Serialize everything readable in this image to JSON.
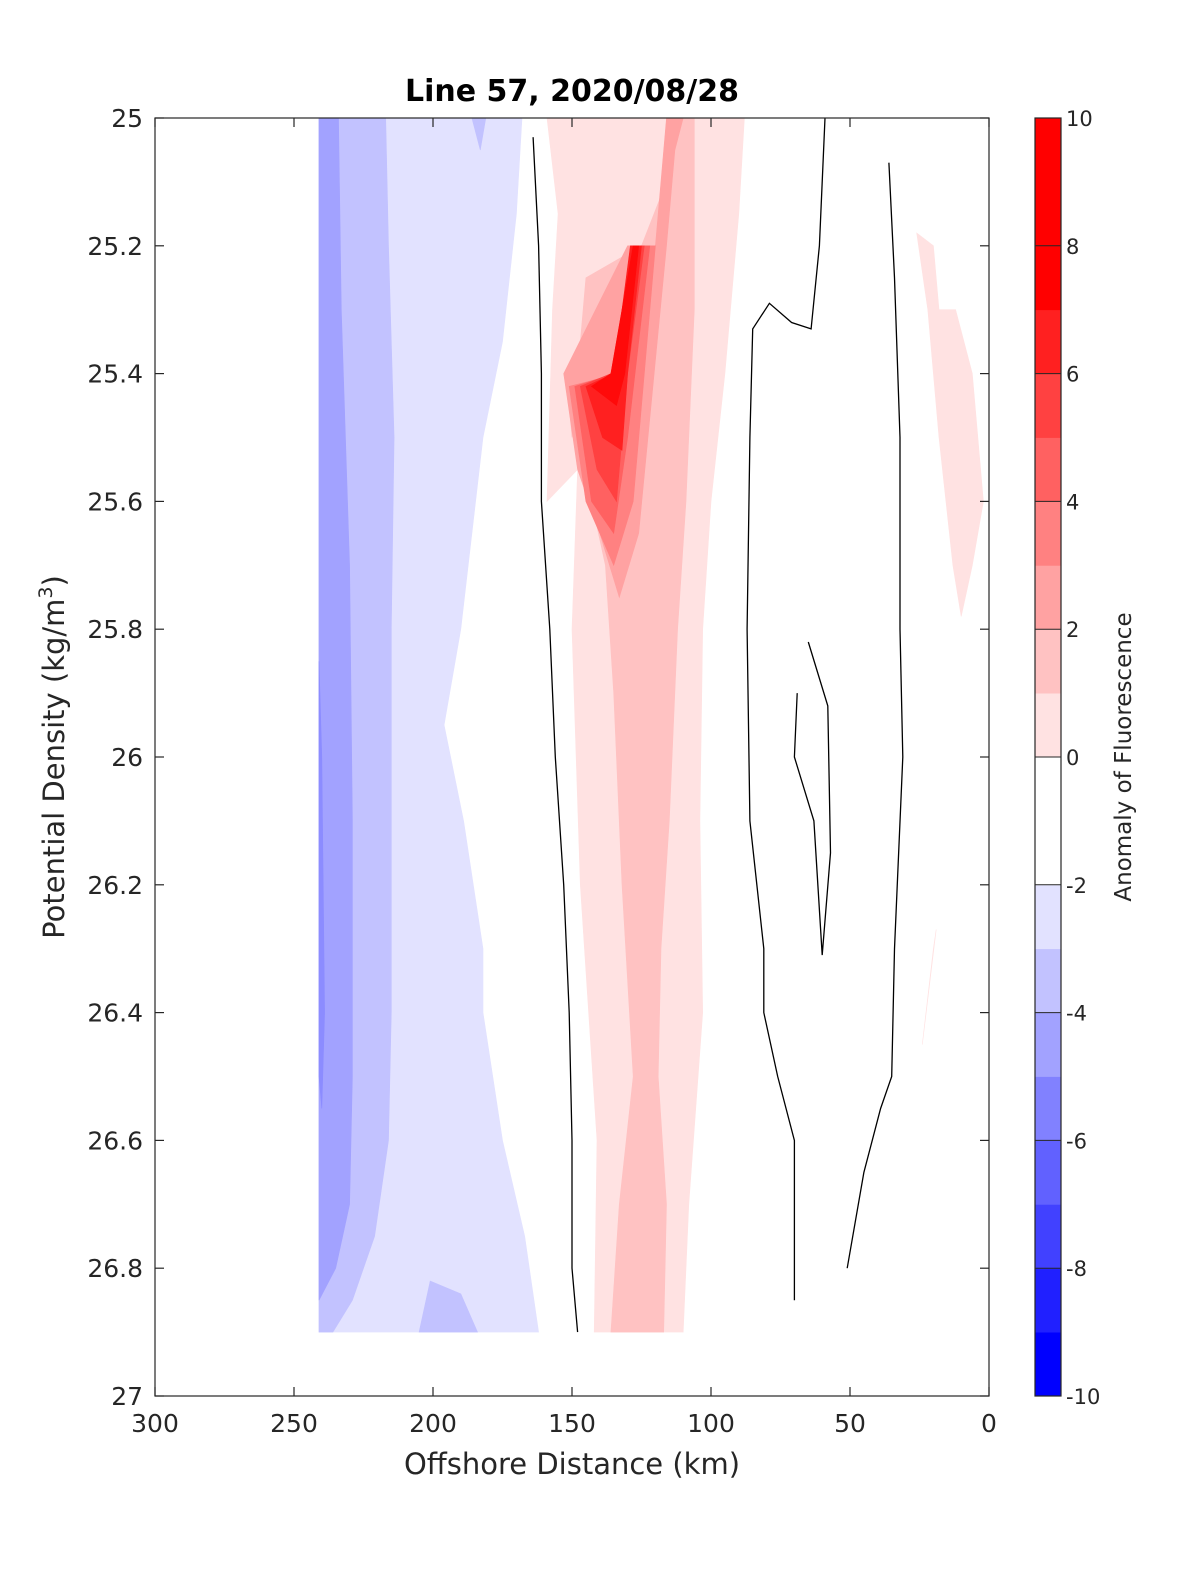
{
  "chart_data": {
    "type": "contour",
    "title": "Line 57, 2020/08/28",
    "xlabel": "Offshore Distance (km)",
    "ylabel_main": "Potential Density (kg/m",
    "ylabel_sup": "3",
    "ylabel_close": ")",
    "xlim": [
      300,
      0
    ],
    "ylim": [
      25,
      27
    ],
    "y_reversed": true,
    "xticks": [
      300,
      250,
      200,
      150,
      100,
      50,
      0
    ],
    "xtick_labels": [
      "300",
      "250",
      "200",
      "150",
      "100",
      "50",
      "0"
    ],
    "yticks": [
      25,
      25.2,
      25.4,
      25.6,
      25.8,
      26,
      26.2,
      26.4,
      26.6,
      26.8,
      27
    ],
    "ytick_labels": [
      "25",
      "25.2",
      "25.4",
      "25.6",
      "25.8",
      "26",
      "26.2",
      "26.4",
      "26.6",
      "26.8",
      "27"
    ],
    "colorbar": {
      "label": "Anomaly of Fluorescence",
      "range": [
        -10,
        10
      ],
      "ticks": [
        10,
        8,
        6,
        4,
        2,
        0,
        -2,
        -4,
        -6,
        -8,
        -10
      ],
      "tick_labels": [
        "10",
        "8",
        "6",
        "4",
        "2",
        "0",
        "-2",
        "-4",
        "-6",
        "-8",
        "-10"
      ],
      "level_colors": [
        "#0000ff",
        "#2020ff",
        "#4141ff",
        "#6161ff",
        "#8181ff",
        "#a2a2ff",
        "#c2c2ff",
        "#e2e2ff",
        "#ffffff",
        "#ffffff",
        "#ffe2e2",
        "#ffc2c2",
        "#ffa2a2",
        "#ff8181",
        "#ff6161",
        "#ff4141",
        "#ff2020",
        "#ff0000",
        "#ff0000",
        "#ff0000"
      ]
    },
    "filled_regions": [
      {
        "level": "-1 to 0",
        "color": "#e2e2ff",
        "points": [
          [
            241,
            25
          ],
          [
            168,
            25
          ],
          [
            170,
            25.15
          ],
          [
            175,
            25.35
          ],
          [
            182,
            25.5
          ],
          [
            190,
            25.8
          ],
          [
            196,
            25.95
          ],
          [
            189,
            26.1
          ],
          [
            182,
            26.3
          ],
          [
            182,
            26.4
          ],
          [
            175,
            26.6
          ],
          [
            167,
            26.75
          ],
          [
            162,
            26.9
          ],
          [
            241,
            26.9
          ]
        ]
      },
      {
        "level": "-2 to -1",
        "color": "#c2c2ff",
        "points": [
          [
            241,
            25
          ],
          [
            217,
            25
          ],
          [
            216,
            25.2
          ],
          [
            214,
            25.5
          ],
          [
            215,
            25.8
          ],
          [
            215,
            26.1
          ],
          [
            215,
            26.4
          ],
          [
            216,
            26.6
          ],
          [
            221,
            26.75
          ],
          [
            225,
            26.8
          ],
          [
            229,
            26.85
          ],
          [
            236,
            26.9
          ],
          [
            241,
            26.9
          ]
        ]
      },
      {
        "level": "-2 to -1",
        "color": "#c2c2ff",
        "points": [
          [
            205,
            26.9
          ],
          [
            201,
            26.82
          ],
          [
            190,
            26.84
          ],
          [
            184,
            26.9
          ]
        ]
      },
      {
        "level": "-2 to -1",
        "color": "#c2c2ff",
        "points": [
          [
            186,
            25
          ],
          [
            183,
            25.05
          ],
          [
            181,
            25
          ]
        ]
      },
      {
        "level": "-3 to -2",
        "color": "#a2a2ff",
        "points": [
          [
            241,
            25
          ],
          [
            234,
            25
          ],
          [
            233,
            25.3
          ],
          [
            230,
            25.7
          ],
          [
            229,
            26.1
          ],
          [
            229,
            26.5
          ],
          [
            230,
            26.7
          ],
          [
            235,
            26.8
          ],
          [
            241,
            26.85
          ]
        ]
      },
      {
        "level": "-4 to -3",
        "color": "#8c8cff",
        "points": [
          [
            241,
            25.85
          ],
          [
            240,
            26.0
          ],
          [
            239,
            26.4
          ],
          [
            240,
            26.55
          ],
          [
            241,
            26.5
          ]
        ]
      },
      {
        "level": "1 to 2",
        "color": "#ffe2e2",
        "points": [
          [
            148,
            25.55
          ],
          [
            159,
            25.6
          ],
          [
            157,
            25.3
          ],
          [
            155,
            25.15
          ],
          [
            159,
            25
          ],
          [
            88,
            25
          ],
          [
            90,
            25.15
          ],
          [
            95,
            25.4
          ],
          [
            100,
            25.6
          ],
          [
            103,
            25.8
          ],
          [
            104,
            26.1
          ],
          [
            103,
            26.4
          ],
          [
            108,
            26.7
          ],
          [
            110,
            26.9
          ],
          [
            142,
            26.9
          ],
          [
            141,
            26.6
          ],
          [
            147,
            26.2
          ],
          [
            150,
            25.8
          ]
        ]
      },
      {
        "level": "2 to 3",
        "color": "#ffc2c2",
        "points": [
          [
            150,
            25.5
          ],
          [
            145,
            25.25
          ],
          [
            125,
            25.2
          ],
          [
            116,
            25.1
          ],
          [
            114,
            25
          ],
          [
            106,
            25
          ],
          [
            106,
            25.3
          ],
          [
            109,
            25.6
          ],
          [
            112,
            25.8
          ],
          [
            115,
            26.1
          ],
          [
            118,
            26.3
          ],
          [
            119,
            26.5
          ],
          [
            116,
            26.7
          ],
          [
            117,
            26.9
          ],
          [
            136,
            26.9
          ],
          [
            133,
            26.7
          ],
          [
            128,
            26.5
          ],
          [
            132,
            26.2
          ],
          [
            135,
            25.9
          ],
          [
            138,
            25.7
          ],
          [
            143,
            25.6
          ],
          [
            152,
            25.4
          ]
        ]
      },
      {
        "level": "3 to 4",
        "color": "#ffa2a2",
        "points": [
          [
            153,
            25.4
          ],
          [
            148,
            25.55
          ],
          [
            140,
            25.65
          ],
          [
            133,
            25.75
          ],
          [
            126,
            25.65
          ],
          [
            116,
            25.2
          ],
          [
            113,
            25.05
          ],
          [
            110,
            25
          ],
          [
            116,
            25
          ],
          [
            120,
            25.2
          ],
          [
            130,
            25.2
          ]
        ]
      },
      {
        "level": "4 to 5",
        "color": "#ff8181",
        "points": [
          [
            151,
            25.42
          ],
          [
            145,
            25.6
          ],
          [
            135,
            25.7
          ],
          [
            128,
            25.6
          ],
          [
            120,
            25.2
          ],
          [
            125,
            25.2
          ],
          [
            133,
            25.4
          ]
        ]
      },
      {
        "level": "5 to 6",
        "color": "#ff6161",
        "points": [
          [
            149,
            25.42
          ],
          [
            143,
            25.6
          ],
          [
            135,
            25.65
          ],
          [
            130,
            25.5
          ],
          [
            122,
            25.2
          ],
          [
            127,
            25.2
          ],
          [
            135,
            25.4
          ]
        ]
      },
      {
        "level": "6 to 7",
        "color": "#ff4141",
        "points": [
          [
            147,
            25.42
          ],
          [
            141,
            25.55
          ],
          [
            134,
            25.6
          ],
          [
            130,
            25.4
          ],
          [
            124,
            25.2
          ],
          [
            128,
            25.2
          ],
          [
            136,
            25.4
          ]
        ]
      },
      {
        "level": "7 to 8",
        "color": "#ff2020",
        "points": [
          [
            145,
            25.42
          ],
          [
            139,
            25.5
          ],
          [
            132,
            25.52
          ],
          [
            130,
            25.4
          ],
          [
            125,
            25.2
          ],
          [
            129,
            25.2
          ],
          [
            135,
            25.4
          ]
        ]
      },
      {
        "level": "8 to 9",
        "color": "#ff0a0a",
        "points": [
          [
            143,
            25.42
          ],
          [
            134,
            25.45
          ],
          [
            131,
            25.4
          ],
          [
            126,
            25.2
          ],
          [
            128,
            25.2
          ],
          [
            136,
            25.4
          ]
        ]
      },
      {
        "level": "1 to 2",
        "color": "#ffe2e2",
        "points": [
          [
            26,
            25.18
          ],
          [
            20,
            25.2
          ],
          [
            18,
            25.3
          ],
          [
            12,
            25.3
          ],
          [
            6,
            25.4
          ],
          [
            2,
            25.6
          ],
          [
            6,
            25.7
          ],
          [
            10,
            25.78
          ],
          [
            13,
            25.7
          ],
          [
            18,
            25.5
          ],
          [
            22,
            25.3
          ]
        ]
      },
      {
        "level": "1 to 2",
        "color": "#ffe2e2",
        "points": [
          [
            19,
            26.27
          ],
          [
            24,
            26.45
          ],
          [
            20,
            26.3
          ]
        ]
      }
    ],
    "contour_lines": [
      {
        "level": 0,
        "points": [
          [
            164,
            25.03
          ],
          [
            162,
            25.2
          ],
          [
            161,
            25.4
          ],
          [
            161,
            25.6
          ],
          [
            158,
            25.8
          ],
          [
            156,
            26.0
          ],
          [
            153,
            26.2
          ],
          [
            151,
            26.4
          ],
          [
            150,
            26.6
          ],
          [
            150,
            26.8
          ],
          [
            148,
            26.9
          ]
        ]
      },
      {
        "level": 0,
        "points": [
          [
            59,
            25.0
          ],
          [
            61,
            25.2
          ],
          [
            64,
            25.33
          ],
          [
            71,
            25.32
          ],
          [
            79,
            25.29
          ],
          [
            85,
            25.33
          ],
          [
            86,
            25.5
          ],
          [
            87,
            25.8
          ],
          [
            86,
            26.1
          ],
          [
            81,
            26.3
          ],
          [
            81,
            26.4
          ],
          [
            76,
            26.5
          ],
          [
            70,
            26.6
          ],
          [
            70,
            26.85
          ]
        ]
      },
      {
        "level": 0,
        "points": [
          [
            36,
            25.07
          ],
          [
            34,
            25.25
          ],
          [
            32,
            25.5
          ],
          [
            32,
            25.8
          ],
          [
            31,
            26.0
          ],
          [
            34,
            26.3
          ],
          [
            35,
            26.5
          ],
          [
            39,
            26.55
          ],
          [
            45,
            26.65
          ],
          [
            51,
            26.8
          ]
        ]
      },
      {
        "level": 0,
        "points": [
          [
            65,
            25.82
          ],
          [
            58,
            25.92
          ],
          [
            57,
            26.15
          ],
          [
            60,
            26.31
          ],
          [
            63,
            26.1
          ],
          [
            70,
            26.0
          ],
          [
            69,
            25.9
          ]
        ]
      }
    ]
  }
}
